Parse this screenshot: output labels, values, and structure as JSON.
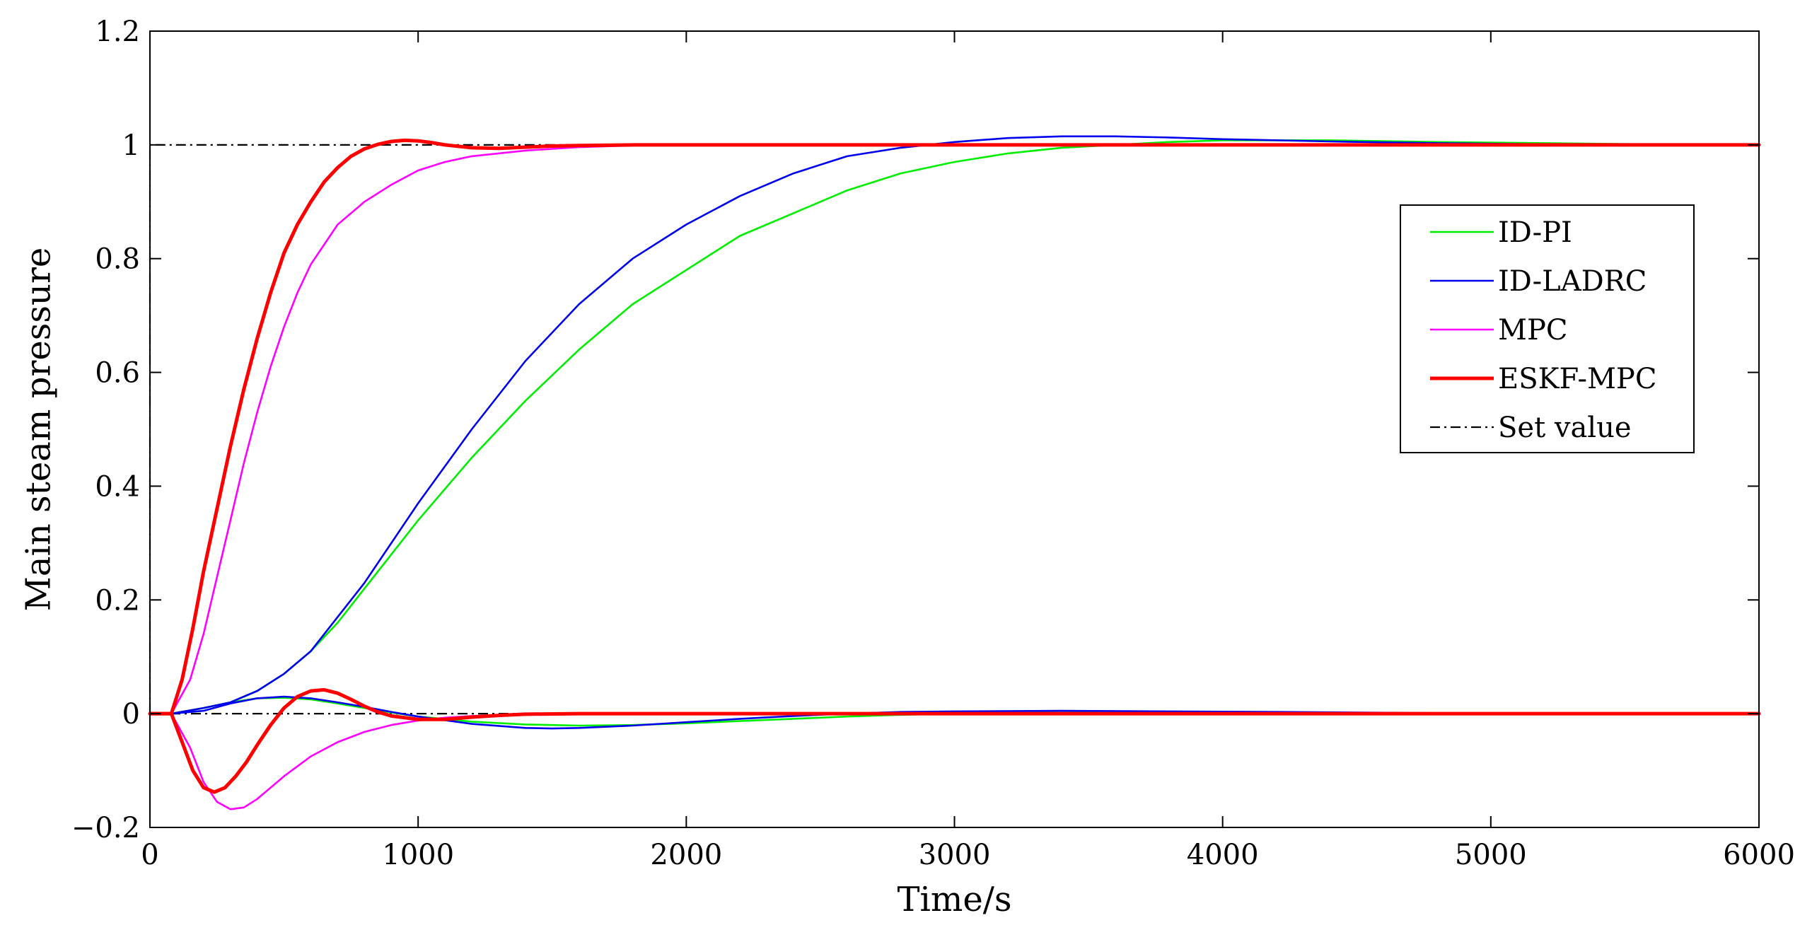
{
  "chart_data": {
    "type": "line",
    "xlabel": "Time/s",
    "ylabel": "Main steam pressure",
    "xlim": [
      0,
      6000
    ],
    "ylim": [
      -0.2,
      1.2
    ],
    "xticks": [
      0,
      1000,
      2000,
      3000,
      4000,
      5000,
      6000
    ],
    "yticks": [
      -0.2,
      0,
      0.2,
      0.4,
      0.6,
      0.8,
      1,
      1.2
    ],
    "xtick_labels": [
      "0",
      "1000",
      "2000",
      "3000",
      "4000",
      "5000",
      "6000"
    ],
    "ytick_labels": [
      "−0.2",
      "0",
      "0.2",
      "0.4",
      "0.6",
      "0.8",
      "1",
      "1.2"
    ],
    "grid": false,
    "legend_position": "right",
    "series": [
      {
        "name": "ID-PI",
        "color": "#00ee00",
        "style": "solid",
        "groups": [
          {
            "x": [
              0,
              80,
              200,
              300,
              400,
              500,
              600,
              700,
              800,
              900,
              1000,
              1200,
              1400,
              1600,
              1800,
              2000,
              2200,
              2400,
              2600,
              2800,
              3000,
              3200,
              3400,
              3600,
              3800,
              4000,
              4400,
              4800,
              5200,
              5600,
              6000
            ],
            "y": [
              0,
              0,
              0.01,
              0.02,
              0.04,
              0.07,
              0.11,
              0.16,
              0.22,
              0.28,
              0.34,
              0.45,
              0.55,
              0.64,
              0.72,
              0.78,
              0.84,
              0.88,
              0.92,
              0.95,
              0.97,
              0.985,
              0.995,
              1.0,
              1.005,
              1.008,
              1.008,
              1.005,
              1.003,
              1.001,
              1.0
            ]
          },
          {
            "x": [
              0,
              80,
              200,
              300,
              400,
              500,
              600,
              700,
              800,
              900,
              1000,
              1200,
              1400,
              1600,
              1800,
              2000,
              2200,
              2400,
              2600,
              2800,
              3000,
              3400,
              3800,
              4200,
              4800,
              5400,
              6000
            ],
            "y": [
              0,
              0,
              0.01,
              0.02,
              0.027,
              0.028,
              0.025,
              0.018,
              0.01,
              0.002,
              -0.005,
              -0.014,
              -0.019,
              -0.021,
              -0.02,
              -0.017,
              -0.013,
              -0.009,
              -0.005,
              -0.002,
              0.0,
              0.002,
              0.002,
              0.001,
              0.0,
              0.0,
              0.0
            ]
          }
        ]
      },
      {
        "name": "ID-LADRC",
        "color": "#0000ee",
        "style": "solid",
        "groups": [
          {
            "x": [
              0,
              80,
              200,
              300,
              400,
              500,
              600,
              700,
              800,
              900,
              1000,
              1200,
              1400,
              1600,
              1800,
              2000,
              2200,
              2400,
              2600,
              2800,
              3000,
              3200,
              3400,
              3600,
              3800,
              4000,
              4400,
              4800,
              5200,
              5600,
              6000
            ],
            "y": [
              0,
              0,
              0.01,
              0.02,
              0.04,
              0.07,
              0.11,
              0.17,
              0.23,
              0.3,
              0.37,
              0.5,
              0.62,
              0.72,
              0.8,
              0.86,
              0.91,
              0.95,
              0.98,
              0.995,
              1.005,
              1.012,
              1.015,
              1.015,
              1.013,
              1.01,
              1.006,
              1.003,
              1.001,
              1.0,
              1.0
            ]
          },
          {
            "x": [
              0,
              80,
              200,
              300,
              400,
              500,
              600,
              700,
              800,
              900,
              1000,
              1200,
              1400,
              1500,
              1600,
              1800,
              2000,
              2200,
              2400,
              2600,
              2800,
              3000,
              3400,
              3800,
              4200,
              4800,
              5400,
              6000
            ],
            "y": [
              0,
              0,
              0.005,
              0.018,
              0.027,
              0.03,
              0.027,
              0.02,
              0.012,
              0.003,
              -0.005,
              -0.018,
              -0.025,
              -0.026,
              -0.025,
              -0.021,
              -0.015,
              -0.009,
              -0.004,
              0.0,
              0.003,
              0.004,
              0.005,
              0.004,
              0.003,
              0.001,
              0.0,
              0.0
            ]
          }
        ]
      },
      {
        "name": "MPC",
        "color": "#ff00ff",
        "style": "solid",
        "groups": [
          {
            "x": [
              0,
              80,
              150,
              200,
              250,
              300,
              350,
              400,
              450,
              500,
              550,
              600,
              700,
              800,
              900,
              1000,
              1100,
              1200,
              1400,
              1600,
              1800,
              2000,
              2400,
              3000,
              4000,
              5000,
              6000
            ],
            "y": [
              0,
              0,
              0.06,
              0.14,
              0.24,
              0.34,
              0.44,
              0.53,
              0.61,
              0.68,
              0.74,
              0.79,
              0.86,
              0.9,
              0.93,
              0.955,
              0.97,
              0.98,
              0.99,
              0.996,
              0.999,
              1.0,
              1.0,
              1.0,
              1.0,
              1.0,
              1.0
            ]
          },
          {
            "x": [
              0,
              80,
              150,
              200,
              250,
              300,
              350,
              400,
              450,
              500,
              600,
              700,
              800,
              900,
              1000,
              1100,
              1200,
              1400,
              1600,
              2000,
              3000,
              4000,
              5000,
              6000
            ],
            "y": [
              0,
              0,
              -0.06,
              -0.12,
              -0.155,
              -0.168,
              -0.165,
              -0.15,
              -0.13,
              -0.11,
              -0.075,
              -0.05,
              -0.032,
              -0.02,
              -0.012,
              -0.007,
              -0.004,
              -0.001,
              0.0,
              0.0,
              0.0,
              0.0,
              0.0,
              0.0
            ]
          }
        ]
      },
      {
        "name": "ESKF-MPC",
        "color": "#ff0000",
        "style": "solid",
        "width": "thick",
        "groups": [
          {
            "x": [
              0,
              80,
              120,
              160,
              200,
              250,
              300,
              350,
              400,
              450,
              500,
              550,
              600,
              650,
              700,
              750,
              800,
              850,
              900,
              950,
              1000,
              1050,
              1100,
              1200,
              1300,
              1400,
              1500,
              1600,
              1800,
              2000,
              3000,
              4000,
              5000,
              6000
            ],
            "y": [
              0,
              0,
              0.06,
              0.15,
              0.25,
              0.36,
              0.47,
              0.57,
              0.66,
              0.74,
              0.81,
              0.86,
              0.9,
              0.935,
              0.96,
              0.98,
              0.993,
              1.001,
              1.006,
              1.008,
              1.007,
              1.004,
              1.0,
              0.995,
              0.994,
              0.996,
              0.998,
              0.999,
              1.0,
              1.0,
              1.0,
              1.0,
              1.0,
              1.0
            ]
          },
          {
            "x": [
              0,
              80,
              120,
              160,
              200,
              240,
              280,
              320,
              360,
              400,
              450,
              500,
              550,
              600,
              650,
              700,
              750,
              800,
              850,
              900,
              1000,
              1100,
              1200,
              1300,
              1400,
              1600,
              2000,
              3000,
              4000,
              5000,
              6000
            ],
            "y": [
              0,
              0,
              -0.05,
              -0.1,
              -0.13,
              -0.138,
              -0.13,
              -0.11,
              -0.085,
              -0.055,
              -0.02,
              0.01,
              0.03,
              0.04,
              0.042,
              0.036,
              0.025,
              0.013,
              0.003,
              -0.004,
              -0.01,
              -0.01,
              -0.006,
              -0.003,
              -0.001,
              0.0,
              0.0,
              0.0,
              0.0,
              0.0,
              0.0
            ]
          }
        ]
      },
      {
        "name": "Set value",
        "color": "#000000",
        "style": "dashdot",
        "groups": [
          {
            "x": [
              0,
              0,
              6000
            ],
            "y": [
              0,
              1,
              1
            ]
          },
          {
            "x": [
              0,
              6000
            ],
            "y": [
              0,
              0
            ]
          }
        ]
      }
    ]
  }
}
